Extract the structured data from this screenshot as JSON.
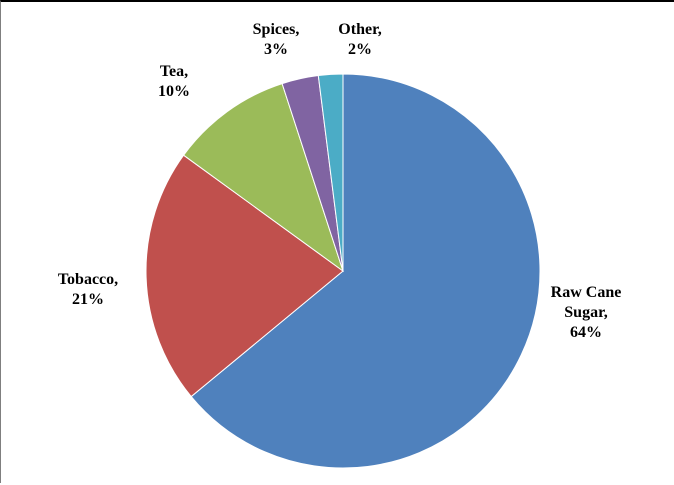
{
  "chart_data": {
    "type": "pie",
    "title": "",
    "categories": [
      "Raw Cane Sugar",
      "Tobacco",
      "Tea",
      "Spices",
      "Other"
    ],
    "values": [
      64,
      21,
      10,
      3,
      2
    ],
    "value_unit": "%",
    "start": "12 o'clock",
    "direction": "clockwise",
    "labels": [
      {
        "lines": [
          "Raw Cane",
          "Sugar,",
          "64%"
        ]
      },
      {
        "lines": [
          "Tobacco,",
          "21%"
        ]
      },
      {
        "lines": [
          "Tea,",
          "10%"
        ]
      },
      {
        "lines": [
          "Spices,",
          "3%"
        ]
      },
      {
        "lines": [
          "Other,",
          "2%"
        ]
      }
    ],
    "colors": [
      "#4F81BD",
      "#C0504D",
      "#9BBB59",
      "#8064A2",
      "#4BACC6"
    ],
    "legend": "none"
  }
}
